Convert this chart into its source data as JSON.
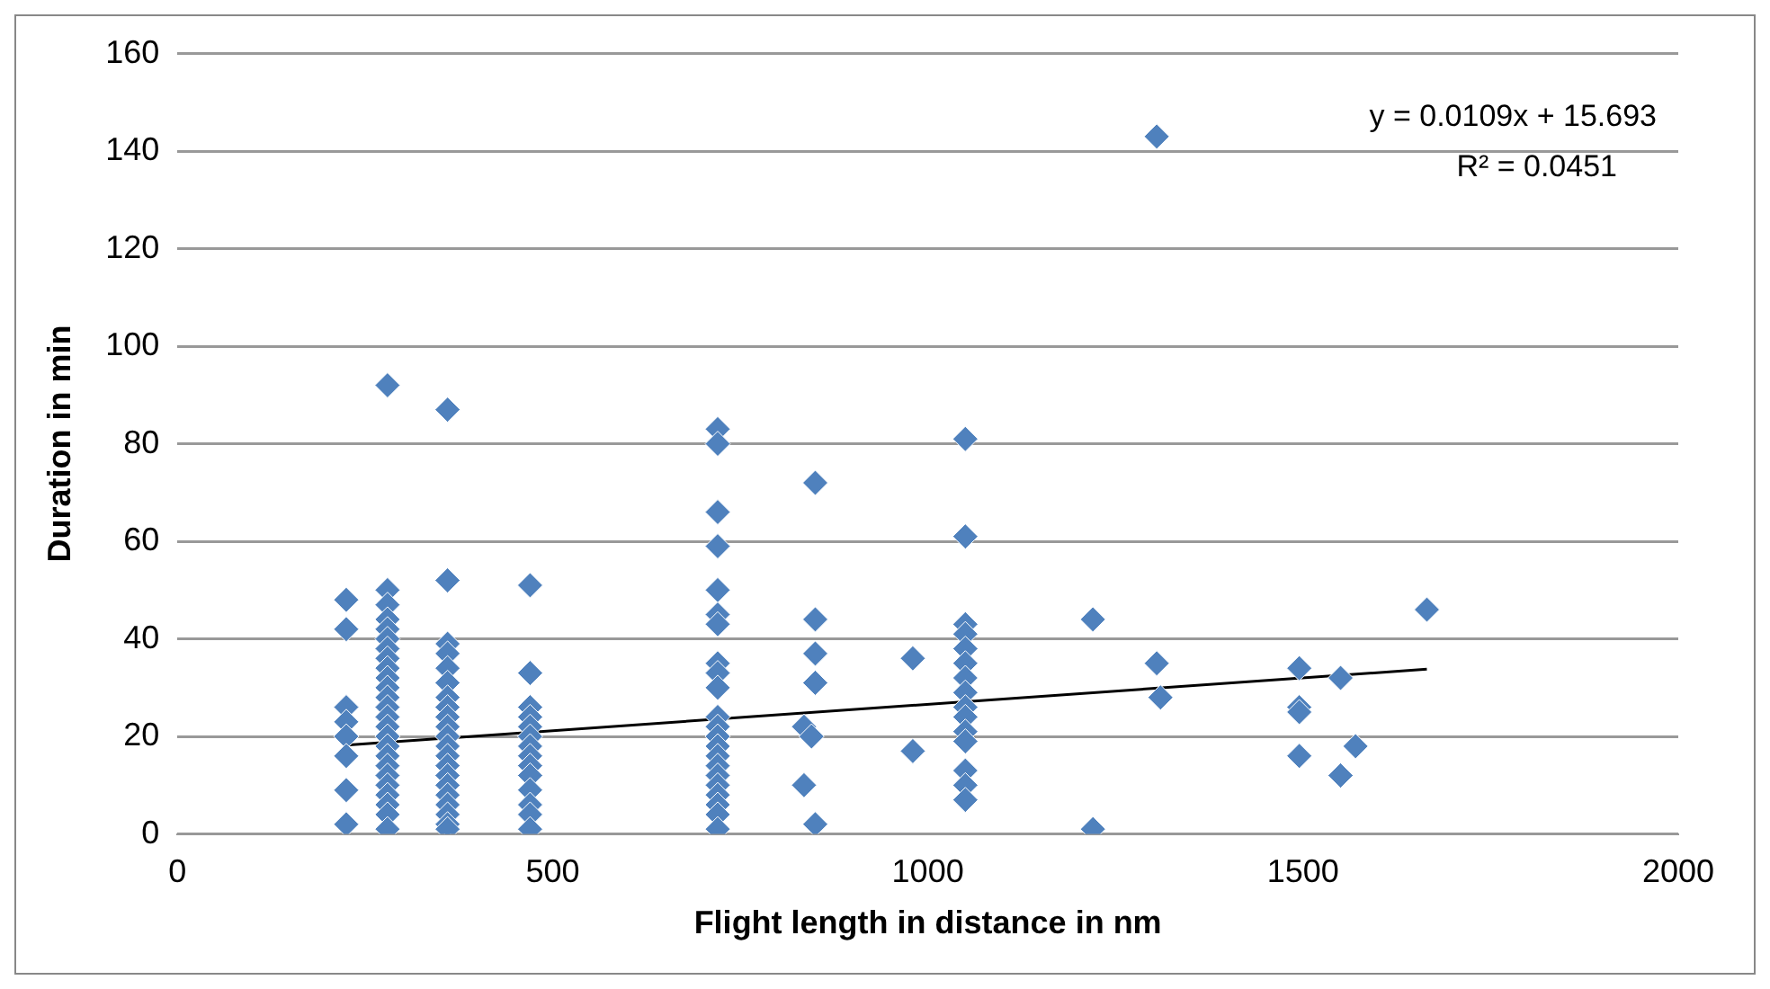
{
  "chart_data": {
    "type": "scatter",
    "xlabel": "Flight length in distance in nm",
    "ylabel": "Duration in min",
    "xlim": [
      0,
      2000
    ],
    "xticks": [
      0,
      500,
      1000,
      1500,
      2000
    ],
    "ylim": [
      0,
      160
    ],
    "yticks": [
      0,
      20,
      40,
      60,
      80,
      100,
      120,
      140,
      160
    ],
    "grid": "y",
    "legend": false,
    "marker": "diamond",
    "annotations": [
      "y = 0.0109x + 15.693",
      "R² = 0.0451"
    ],
    "series": [
      {
        "type": "scatter",
        "color": "#4f81bd",
        "x": [
          225,
          225,
          225,
          225,
          225,
          225,
          225,
          225,
          280,
          280,
          280,
          280,
          280,
          280,
          280,
          280,
          280,
          280,
          280,
          280,
          280,
          280,
          280,
          280,
          280,
          280,
          280,
          280,
          280,
          280,
          280,
          280,
          280,
          360,
          360,
          360,
          360,
          360,
          360,
          360,
          360,
          360,
          360,
          360,
          360,
          360,
          360,
          360,
          360,
          360,
          360,
          360,
          360,
          360,
          470,
          470,
          470,
          470,
          470,
          470,
          470,
          470,
          470,
          470,
          470,
          470,
          470,
          470,
          720,
          720,
          720,
          720,
          720,
          720,
          720,
          720,
          720,
          720,
          720,
          720,
          720,
          720,
          720,
          720,
          720,
          720,
          720,
          720,
          720,
          720,
          835,
          835,
          845,
          850,
          850,
          850,
          850,
          850,
          980,
          980,
          1050,
          1050,
          1050,
          1050,
          1050,
          1050,
          1050,
          1050,
          1050,
          1050,
          1050,
          1050,
          1050,
          1050,
          1050,
          1220,
          1220,
          1305,
          1305,
          1310,
          1495,
          1495,
          1495,
          1495,
          1550,
          1550,
          1570,
          1665
        ],
        "values": [
          48,
          42,
          26,
          23,
          20,
          16,
          9,
          2,
          92,
          50,
          47,
          44,
          42,
          40,
          38,
          36,
          34,
          32,
          30,
          28,
          26,
          24,
          22,
          20,
          18,
          16,
          14,
          12,
          10,
          8,
          6,
          4,
          1,
          87,
          52,
          39,
          37,
          34,
          31,
          28,
          26,
          24,
          22,
          20,
          18,
          16,
          14,
          12,
          10,
          8,
          6,
          4,
          2,
          1,
          51,
          33,
          26,
          24,
          22,
          20,
          18,
          16,
          14,
          12,
          9,
          6,
          4,
          1,
          83,
          80,
          66,
          59,
          50,
          45,
          43,
          35,
          33,
          30,
          24,
          22,
          20,
          18,
          16,
          14,
          12,
          10,
          8,
          6,
          4,
          1,
          22,
          10,
          20,
          72,
          44,
          37,
          31,
          2,
          36,
          17,
          81,
          61,
          43,
          41,
          38,
          35,
          32,
          29,
          26,
          24,
          21,
          19,
          13,
          10,
          7,
          44,
          1,
          143,
          35,
          28,
          34,
          26,
          25,
          16,
          32,
          12,
          18,
          46
        ]
      },
      {
        "type": "line",
        "color": "#000000",
        "marker": "none",
        "x": [
          225,
          1665
        ],
        "values": [
          18.2,
          33.8
        ]
      }
    ]
  }
}
